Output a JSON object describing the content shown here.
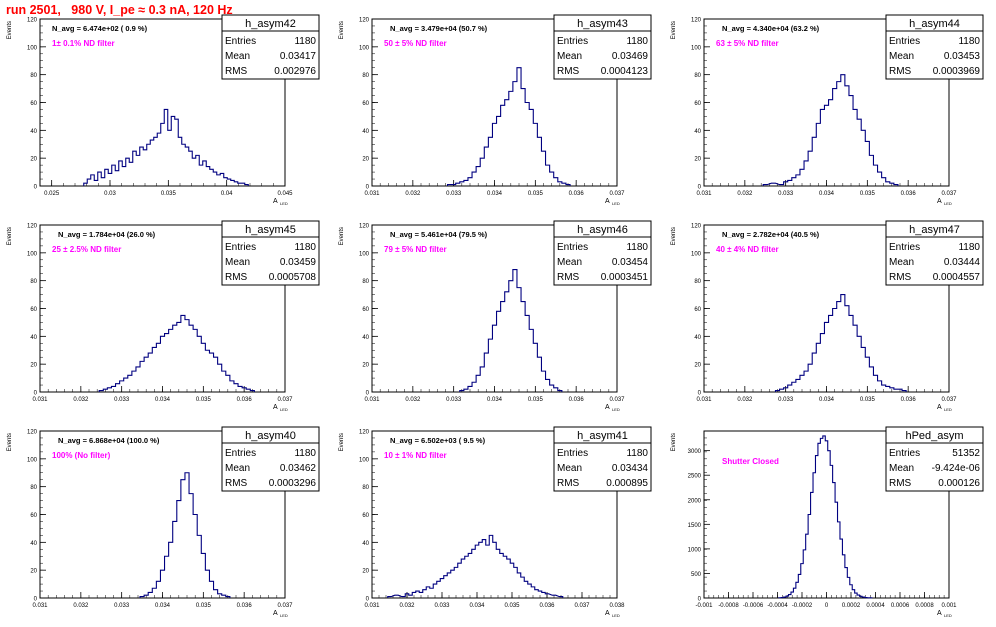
{
  "page": {
    "title": "run 2501,   980 V, I_pe ≈ 0.3 nA, 120 Hz",
    "y_axis_label": "Events",
    "x_axis_label": "A",
    "x_axis_sub": "LED"
  },
  "colors": {
    "title": "#ff0000",
    "histogram": "#000080",
    "annotation": "#ff00ff",
    "stats_text": "#000000"
  },
  "stats_labels": {
    "entries": "Entries",
    "mean": "Mean",
    "rms": "RMS"
  },
  "panels": [
    {
      "name": "h_asym42",
      "navg": "N_avg = 6.474e+02 ( 0.9 %)",
      "note": "1± 0.1% ND filter",
      "entries": "1180",
      "mean": "0.03417",
      "rms": "0.002976",
      "x_ticks": [
        "0.025",
        "0.03",
        "0.035",
        "0.04",
        "0.045"
      ],
      "y_ticks": [
        "0",
        "20",
        "40",
        "60",
        "80",
        "100",
        "120"
      ]
    },
    {
      "name": "h_asym43",
      "navg": "N_avg = 3.479e+04 (50.7 %)",
      "note": "50 ± 5% ND filter",
      "entries": "1180",
      "mean": "0.03469",
      "rms": "0.0004123",
      "x_ticks": [
        "0.031",
        "0.032",
        "0.033",
        "0.034",
        "0.035",
        "0.036",
        "0.037"
      ],
      "y_ticks": [
        "0",
        "20",
        "40",
        "60",
        "80",
        "100",
        "120"
      ]
    },
    {
      "name": "h_asym44",
      "navg": "N_avg = 4.340e+04 (63.2 %)",
      "note": "63 ± 5% ND filter",
      "entries": "1180",
      "mean": "0.03453",
      "rms": "0.0003969",
      "x_ticks": [
        "0.031",
        "0.032",
        "0.033",
        "0.034",
        "0.035",
        "0.036",
        "0.037"
      ],
      "y_ticks": [
        "0",
        "20",
        "40",
        "60",
        "80",
        "100",
        "120"
      ]
    },
    {
      "name": "h_asym45",
      "navg": "N_avg = 1.784e+04 (26.0 %)",
      "note": "25 ± 2.5% ND filter",
      "entries": "1180",
      "mean": "0.03459",
      "rms": "0.0005708",
      "x_ticks": [
        "0.031",
        "0.032",
        "0.033",
        "0.034",
        "0.035",
        "0.036",
        "0.037"
      ],
      "y_ticks": [
        "0",
        "20",
        "40",
        "60",
        "80",
        "100",
        "120"
      ]
    },
    {
      "name": "h_asym46",
      "navg": "N_avg = 5.461e+04 (79.5 %)",
      "note": "79 ± 5% ND filter",
      "entries": "1180",
      "mean": "0.03454",
      "rms": "0.0003451",
      "x_ticks": [
        "0.031",
        "0.032",
        "0.033",
        "0.034",
        "0.035",
        "0.036",
        "0.037"
      ],
      "y_ticks": [
        "0",
        "20",
        "40",
        "60",
        "80",
        "100",
        "120"
      ]
    },
    {
      "name": "h_asym47",
      "navg": "N_avg = 2.782e+04 (40.5 %)",
      "note": "40 ± 4% ND filter",
      "entries": "1180",
      "mean": "0.03444",
      "rms": "0.0004557",
      "x_ticks": [
        "0.031",
        "0.032",
        "0.033",
        "0.034",
        "0.035",
        "0.036",
        "0.037"
      ],
      "y_ticks": [
        "0",
        "20",
        "40",
        "60",
        "80",
        "100",
        "120"
      ]
    },
    {
      "name": "h_asym40",
      "navg": "N_avg = 6.868e+04 (100.0 %)",
      "note": "100% (No filter)",
      "entries": "1180",
      "mean": "0.03462",
      "rms": "0.0003296",
      "x_ticks": [
        "0.031",
        "0.032",
        "0.033",
        "0.034",
        "0.035",
        "0.036",
        "0.037"
      ],
      "y_ticks": [
        "0",
        "20",
        "40",
        "60",
        "80",
        "100",
        "120"
      ]
    },
    {
      "name": "h_asym41",
      "navg": "N_avg = 6.502e+03 ( 9.5 %)",
      "note": "10 ± 1% ND filter",
      "entries": "1180",
      "mean": "0.03434",
      "rms": "0.000895",
      "x_ticks": [
        "0.031",
        "0.032",
        "0.033",
        "0.034",
        "0.035",
        "0.036",
        "0.037",
        "0.038"
      ],
      "y_ticks": [
        "0",
        "20",
        "40",
        "60",
        "80",
        "100",
        "120"
      ]
    },
    {
      "name": "hPed_asym",
      "navg": "",
      "note": "Shutter Closed",
      "entries": "51352",
      "mean": "-9.424e-06",
      "rms": "0.000126",
      "x_ticks": [
        "-0.001",
        "-0.0008",
        "-0.0006",
        "-0.0004",
        "-0.0002",
        "0",
        "0.0002",
        "0.0004",
        "0.0006",
        "0.0008",
        "0.001"
      ],
      "y_ticks": [
        "0",
        "500",
        "1000",
        "1500",
        "2000",
        "2500",
        "3000"
      ]
    }
  ],
  "chart_data": [
    {
      "type": "bar",
      "title": "h_asym42",
      "xlim": [
        0.024,
        0.045
      ],
      "ylim": [
        0,
        120
      ],
      "bin_width": 0.0003,
      "x": [
        0.0279,
        0.0282,
        0.0285,
        0.0288,
        0.0291,
        0.0294,
        0.0297,
        0.03,
        0.0303,
        0.0306,
        0.0309,
        0.0312,
        0.0315,
        0.0318,
        0.0321,
        0.0324,
        0.0327,
        0.033,
        0.0333,
        0.0336,
        0.0339,
        0.0342,
        0.0345,
        0.0348,
        0.0351,
        0.0354,
        0.0357,
        0.036,
        0.0363,
        0.0366,
        0.0369,
        0.0372,
        0.0375,
        0.0378,
        0.0381,
        0.0384,
        0.0387,
        0.039,
        0.0393,
        0.0396,
        0.0399,
        0.0402,
        0.0405,
        0.0408,
        0.0411,
        0.0414,
        0.0417
      ],
      "values": [
        2,
        5,
        8,
        4,
        10,
        6,
        12,
        9,
        15,
        11,
        18,
        14,
        20,
        17,
        25,
        22,
        28,
        26,
        30,
        33,
        35,
        38,
        45,
        55,
        40,
        50,
        48,
        35,
        30,
        28,
        25,
        20,
        22,
        15,
        18,
        14,
        12,
        10,
        8,
        9,
        6,
        5,
        4,
        3,
        2,
        2,
        1
      ]
    },
    {
      "type": "bar",
      "title": "h_asym43",
      "xlim": [
        0.031,
        0.037
      ],
      "ylim": [
        0,
        120
      ],
      "bin_width": 0.0001,
      "x": [
        0.0329,
        0.033,
        0.0331,
        0.0332,
        0.0333,
        0.0334,
        0.0335,
        0.0336,
        0.0337,
        0.0338,
        0.0339,
        0.034,
        0.0341,
        0.0342,
        0.0343,
        0.0344,
        0.0345,
        0.0346,
        0.0347,
        0.0348,
        0.0349,
        0.035,
        0.0351,
        0.0352,
        0.0353,
        0.0354,
        0.0355,
        0.0356,
        0.0357,
        0.0358
      ],
      "values": [
        1,
        1,
        2,
        3,
        4,
        6,
        10,
        14,
        20,
        28,
        35,
        45,
        50,
        58,
        62,
        68,
        75,
        85,
        70,
        60,
        55,
        45,
        35,
        25,
        15,
        10,
        6,
        3,
        2,
        1
      ]
    },
    {
      "type": "bar",
      "title": "h_asym44",
      "xlim": [
        0.031,
        0.037
      ],
      "ylim": [
        0,
        120
      ],
      "bin_width": 0.0001,
      "x": [
        0.0325,
        0.0327,
        0.0329,
        0.033,
        0.0331,
        0.0332,
        0.0333,
        0.0334,
        0.0335,
        0.0336,
        0.0337,
        0.0338,
        0.0339,
        0.034,
        0.0341,
        0.0342,
        0.0343,
        0.0344,
        0.0345,
        0.0346,
        0.0347,
        0.0348,
        0.0349,
        0.035,
        0.0351,
        0.0352,
        0.0353,
        0.0354,
        0.0355,
        0.0356,
        0.0357
      ],
      "values": [
        1,
        2,
        1,
        3,
        4,
        6,
        8,
        12,
        18,
        25,
        35,
        45,
        55,
        58,
        62,
        70,
        75,
        80,
        72,
        65,
        55,
        48,
        40,
        32,
        22,
        15,
        10,
        6,
        3,
        2,
        1
      ]
    },
    {
      "type": "bar",
      "title": "h_asym45",
      "xlim": [
        0.031,
        0.037
      ],
      "ylim": [
        0,
        120
      ],
      "bin_width": 0.0001,
      "x": [
        0.0325,
        0.0326,
        0.0327,
        0.0328,
        0.0329,
        0.033,
        0.0331,
        0.0332,
        0.0333,
        0.0334,
        0.0335,
        0.0336,
        0.0337,
        0.0338,
        0.0339,
        0.034,
        0.0341,
        0.0342,
        0.0343,
        0.0344,
        0.0345,
        0.0346,
        0.0347,
        0.0348,
        0.0349,
        0.035,
        0.0351,
        0.0352,
        0.0353,
        0.0354,
        0.0355,
        0.0356,
        0.0357,
        0.0358,
        0.0359,
        0.036,
        0.0361,
        0.0362
      ],
      "values": [
        1,
        2,
        3,
        4,
        6,
        8,
        10,
        12,
        15,
        18,
        22,
        25,
        28,
        32,
        35,
        40,
        42,
        45,
        48,
        50,
        55,
        52,
        48,
        45,
        40,
        35,
        30,
        28,
        25,
        20,
        15,
        12,
        8,
        6,
        4,
        3,
        2,
        1
      ]
    },
    {
      "type": "bar",
      "title": "h_asym46",
      "xlim": [
        0.031,
        0.037
      ],
      "ylim": [
        0,
        120
      ],
      "bin_width": 0.0001,
      "x": [
        0.0332,
        0.0333,
        0.0334,
        0.0335,
        0.0336,
        0.0337,
        0.0338,
        0.0339,
        0.034,
        0.0341,
        0.0342,
        0.0343,
        0.0344,
        0.0345,
        0.0346,
        0.0347,
        0.0348,
        0.0349,
        0.035,
        0.0351,
        0.0352,
        0.0353,
        0.0354,
        0.0355,
        0.0356
      ],
      "values": [
        1,
        2,
        4,
        7,
        12,
        18,
        28,
        38,
        48,
        58,
        65,
        72,
        80,
        88,
        75,
        65,
        55,
        45,
        35,
        25,
        15,
        9,
        5,
        3,
        1
      ]
    },
    {
      "type": "bar",
      "title": "h_asym47",
      "xlim": [
        0.031,
        0.037
      ],
      "ylim": [
        0,
        120
      ],
      "bin_width": 0.0001,
      "x": [
        0.0328,
        0.0329,
        0.033,
        0.0331,
        0.0332,
        0.0333,
        0.0334,
        0.0335,
        0.0336,
        0.0337,
        0.0338,
        0.0339,
        0.034,
        0.0341,
        0.0342,
        0.0343,
        0.0344,
        0.0345,
        0.0346,
        0.0347,
        0.0348,
        0.0349,
        0.035,
        0.0351,
        0.0352,
        0.0353,
        0.0354,
        0.0355,
        0.0356,
        0.0357,
        0.0358,
        0.0359
      ],
      "values": [
        1,
        2,
        3,
        5,
        7,
        9,
        12,
        15,
        20,
        28,
        35,
        42,
        50,
        55,
        60,
        65,
        70,
        62,
        55,
        48,
        40,
        32,
        25,
        18,
        12,
        8,
        5,
        4,
        3,
        2,
        2,
        1
      ]
    },
    {
      "type": "bar",
      "title": "h_asym40",
      "xlim": [
        0.031,
        0.037
      ],
      "ylim": [
        0,
        120
      ],
      "bin_width": 0.0001,
      "x": [
        0.0335,
        0.0336,
        0.0337,
        0.0338,
        0.0339,
        0.034,
        0.0341,
        0.0342,
        0.0343,
        0.0344,
        0.0345,
        0.0346,
        0.0347,
        0.0348,
        0.0349,
        0.035,
        0.0351,
        0.0352,
        0.0353,
        0.0354,
        0.0355,
        0.0356
      ],
      "values": [
        1,
        2,
        4,
        7,
        12,
        20,
        30,
        40,
        55,
        70,
        85,
        90,
        75,
        60,
        45,
        32,
        20,
        12,
        6,
        3,
        2,
        1
      ]
    },
    {
      "type": "bar",
      "title": "h_asym41",
      "xlim": [
        0.031,
        0.038
      ],
      "ylim": [
        0,
        120
      ],
      "bin_width": 0.0001,
      "x": [
        0.0315,
        0.0317,
        0.0319,
        0.032,
        0.0321,
        0.0322,
        0.0323,
        0.0324,
        0.0325,
        0.0326,
        0.0327,
        0.0328,
        0.0329,
        0.033,
        0.0331,
        0.0332,
        0.0333,
        0.0334,
        0.0335,
        0.0336,
        0.0337,
        0.0338,
        0.0339,
        0.034,
        0.0341,
        0.0342,
        0.0343,
        0.0344,
        0.0345,
        0.0346,
        0.0347,
        0.0348,
        0.0349,
        0.035,
        0.0351,
        0.0352,
        0.0353,
        0.0354,
        0.0355,
        0.0356,
        0.0357,
        0.0358,
        0.0359,
        0.036,
        0.0362,
        0.0364
      ],
      "values": [
        1,
        2,
        1,
        3,
        2,
        4,
        5,
        4,
        6,
        8,
        7,
        10,
        12,
        14,
        16,
        18,
        20,
        22,
        25,
        28,
        30,
        32,
        35,
        38,
        40,
        42,
        38,
        45,
        40,
        35,
        32,
        30,
        28,
        25,
        22,
        18,
        15,
        12,
        10,
        8,
        6,
        5,
        4,
        3,
        2,
        1
      ]
    },
    {
      "type": "bar",
      "title": "hPed_asym",
      "xlim": [
        -0.001,
        0.001
      ],
      "ylim": [
        0,
        3400
      ],
      "bin_width": 2e-05,
      "x": [
        -0.00038,
        -0.00036,
        -0.00034,
        -0.00032,
        -0.0003,
        -0.00028,
        -0.00026,
        -0.00024,
        -0.00022,
        -0.0002,
        -0.00018,
        -0.00016,
        -0.00014,
        -0.00012,
        -0.0001,
        -8e-05,
        -6e-05,
        -4e-05,
        -2e-05,
        0,
        2e-05,
        4e-05,
        6e-05,
        8e-05,
        0.0001,
        0.00012,
        0.00014,
        0.00016,
        0.00018,
        0.0002,
        0.00022,
        0.00024,
        0.00026,
        0.00028,
        0.0003,
        0.00032,
        0.00034,
        0.00036
      ],
      "values": [
        5,
        10,
        20,
        40,
        70,
        120,
        200,
        320,
        480,
        700,
        980,
        1300,
        1700,
        2150,
        2550,
        2900,
        3150,
        3250,
        3300,
        3200,
        3000,
        2700,
        2350,
        1950,
        1550,
        1200,
        880,
        620,
        420,
        270,
        170,
        100,
        60,
        35,
        20,
        10,
        5,
        3
      ]
    }
  ]
}
